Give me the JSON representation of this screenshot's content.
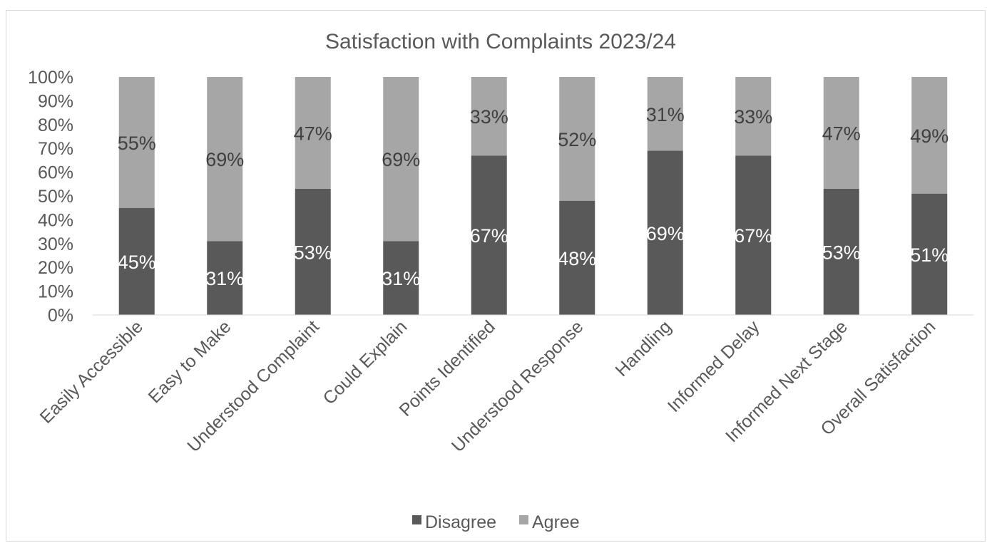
{
  "chart_data": {
    "type": "bar",
    "stacked": true,
    "title": "Satisfaction with Complaints 2023/24",
    "categories": [
      "Easily Accessible",
      "Easy to Make",
      "Understood Complaint",
      "Could Explain",
      "Points Identified",
      "Understood Response",
      "Handling",
      "Informed Delay",
      "Informed Next Stage",
      "Overall Satisfaction"
    ],
    "series": [
      {
        "name": "Disagree",
        "color": "#595959",
        "values": [
          45,
          31,
          53,
          31,
          67,
          48,
          69,
          67,
          53,
          51
        ]
      },
      {
        "name": "Agree",
        "color": "#a6a6a6",
        "values": [
          55,
          69,
          47,
          69,
          33,
          52,
          31,
          33,
          47,
          49
        ]
      }
    ],
    "ylim": [
      0,
      100
    ],
    "yticks": [
      "0%",
      "10%",
      "20%",
      "30%",
      "40%",
      "50%",
      "60%",
      "70%",
      "80%",
      "90%",
      "100%"
    ],
    "legend_position": "bottom",
    "grid": false
  }
}
